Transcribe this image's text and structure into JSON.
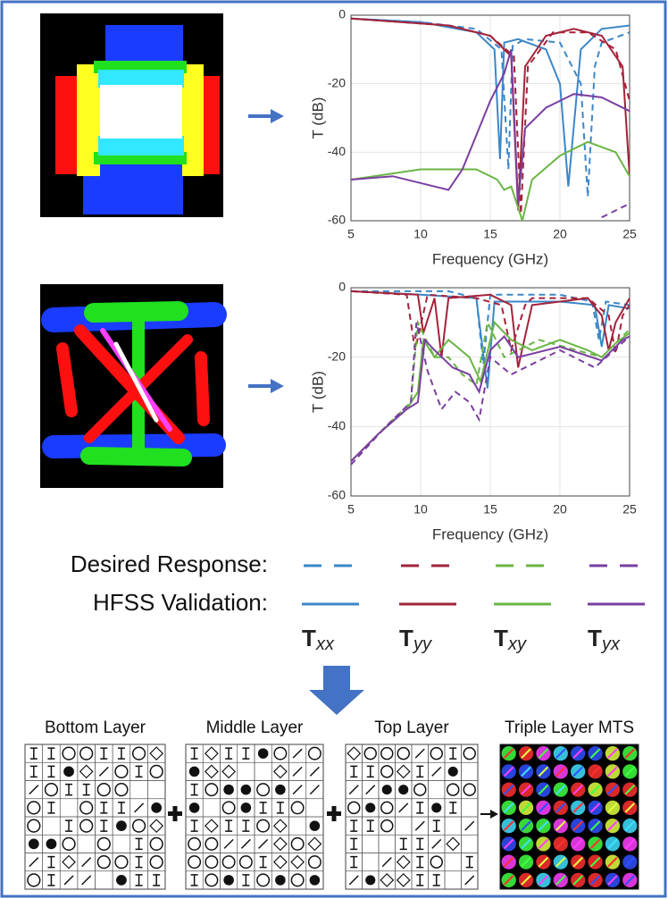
{
  "chart_data": [
    {
      "type": "line",
      "xlabel": "Frequency (GHz)",
      "ylabel": "T (dB)",
      "xlim": [
        5,
        25
      ],
      "ylim": [
        -60,
        0
      ],
      "xticks": [
        5,
        10,
        15,
        20,
        25
      ],
      "yticks": [
        -60,
        -40,
        -20,
        0
      ],
      "grid": true,
      "series": [
        {
          "color": "#3b87c8",
          "dash": true,
          "x": [
            5,
            10,
            14,
            15.8,
            16.3,
            16.6,
            17.5,
            20,
            21.5,
            22,
            22.5,
            23,
            25
          ],
          "values": [
            -1,
            -2,
            -4,
            -10,
            -45,
            -9,
            -7,
            -8,
            -20,
            -53,
            -15,
            -8,
            -5
          ]
        },
        {
          "color": "#3b87c8",
          "dash": false,
          "x": [
            5,
            10,
            14,
            15.3,
            15.7,
            16,
            17,
            19,
            20,
            20.6,
            21.5,
            23,
            25
          ],
          "values": [
            -1,
            -2,
            -5,
            -10,
            -42,
            -8,
            -7,
            -10,
            -20,
            -50,
            -10,
            -4,
            -3
          ]
        },
        {
          "color": "#a3233a",
          "dash": true,
          "x": [
            5,
            12,
            15,
            16.7,
            17.2,
            17.7,
            19.5,
            22,
            24,
            25
          ],
          "values": [
            -1,
            -3,
            -6,
            -12,
            -58,
            -15,
            -5,
            -5,
            -10,
            -25
          ]
        },
        {
          "color": "#a3233a",
          "dash": false,
          "x": [
            5,
            12,
            15,
            16.5,
            17,
            17.5,
            19,
            21,
            23,
            24.5,
            25
          ],
          "values": [
            -1,
            -3,
            -6,
            -12,
            -57,
            -15,
            -6,
            -4,
            -6,
            -15,
            -47
          ]
        },
        {
          "color": "#6ab545",
          "dash": false,
          "x": [
            5,
            10,
            14,
            15.5,
            16,
            16.5,
            17.3,
            18,
            20,
            22,
            24,
            25
          ],
          "values": [
            -48,
            -45,
            -45,
            -48,
            -51,
            -50,
            -60,
            -48,
            -41,
            -37,
            -40,
            -47
          ]
        },
        {
          "color": "#7b3fa0",
          "dash": true,
          "x": [
            23,
            24,
            25
          ],
          "values": [
            -59,
            -57,
            -55
          ]
        },
        {
          "color": "#7b3fa0",
          "dash": false,
          "x": [
            5,
            8,
            11,
            12,
            13,
            14,
            15,
            16,
            16.5,
            17,
            17.5,
            19,
            21,
            23,
            25
          ],
          "values": [
            -48,
            -47,
            -50,
            -51,
            -45,
            -35,
            -25,
            -17,
            -10,
            -55,
            -33,
            -27,
            -23,
            -24,
            -28
          ]
        }
      ]
    },
    {
      "type": "line",
      "xlabel": "Frequency (GHz)",
      "ylabel": "T (dB)",
      "xlim": [
        5,
        25
      ],
      "ylim": [
        -60,
        0
      ],
      "xticks": [
        5,
        10,
        15,
        20,
        25
      ],
      "yticks": [
        -60,
        -40,
        -20,
        0
      ],
      "grid": true,
      "series": [
        {
          "color": "#3b87c8",
          "dash": true,
          "x": [
            5,
            12,
            14,
            14.5,
            15,
            20,
            22.3,
            22.8,
            23.3,
            25
          ],
          "values": [
            -1,
            -1,
            -3,
            -22,
            -2,
            -2,
            -4,
            -15,
            -4,
            -5
          ]
        },
        {
          "color": "#3b87c8",
          "dash": false,
          "x": [
            5,
            10,
            14,
            14.8,
            15.3,
            20,
            22.5,
            23,
            23.5,
            25
          ],
          "values": [
            -1,
            -2,
            -3,
            -29,
            -4,
            -4,
            -5,
            -17,
            -5,
            -6
          ]
        },
        {
          "color": "#a3233a",
          "dash": true,
          "x": [
            5,
            9,
            9.6,
            10.5,
            14,
            15.8,
            16.5,
            17.5,
            18,
            22,
            23.5,
            24,
            24.5,
            25
          ],
          "values": [
            -1,
            -2,
            -18,
            -2,
            -3,
            -5,
            -18,
            -5,
            -3,
            -3,
            -8,
            -19,
            -8,
            -5
          ]
        },
        {
          "color": "#a3233a",
          "dash": false,
          "x": [
            5,
            9.8,
            10.2,
            11,
            11.5,
            12,
            15,
            16.5,
            17,
            18,
            22,
            23,
            23.5,
            24,
            25
          ],
          "values": [
            -1,
            -2,
            -13,
            -3,
            -20,
            -3,
            -2,
            -5,
            -23,
            -5,
            -3,
            -8,
            -18,
            -10,
            -3
          ]
        },
        {
          "color": "#6ab545",
          "dash": true,
          "x": [
            5,
            7.5,
            9.3,
            9.8,
            11,
            12,
            13,
            14,
            14.8,
            16,
            18.5,
            23,
            25
          ],
          "values": [
            -50,
            -40,
            -33,
            -10,
            -20,
            -20,
            -25,
            -28,
            -10,
            -20,
            -15,
            -20,
            -12
          ]
        },
        {
          "color": "#6ab545",
          "dash": false,
          "x": [
            5,
            7,
            9,
            9.8,
            10.2,
            11,
            12,
            13.5,
            14.3,
            15,
            15.3,
            16.5,
            18,
            20,
            22,
            23,
            24,
            25
          ],
          "values": [
            -50,
            -42,
            -35,
            -30,
            -15,
            -20,
            -15,
            -20,
            -27,
            -15,
            -10,
            -15,
            -18,
            -15,
            -18,
            -20,
            -16,
            -13
          ]
        },
        {
          "color": "#7b3fa0",
          "dash": true,
          "x": [
            5,
            7.5,
            9.3,
            9.7,
            10.5,
            11.5,
            12.5,
            13.5,
            14.2,
            15,
            16.5,
            20,
            22.5,
            25
          ],
          "values": [
            -51,
            -40,
            -33,
            -10,
            -24,
            -35,
            -30,
            -33,
            -38,
            -20,
            -25,
            -18,
            -23,
            -14
          ]
        },
        {
          "color": "#7b3fa0",
          "dash": false,
          "x": [
            5,
            7,
            9,
            9.8,
            10.3,
            11,
            12.3,
            13.5,
            14.2,
            15,
            16,
            17,
            20,
            23,
            24.5,
            25
          ],
          "values": [
            -50,
            -42,
            -35,
            -33,
            -15,
            -18,
            -23,
            -25,
            -30,
            -18,
            -14,
            -20,
            -17,
            -21,
            -15,
            -14
          ]
        }
      ]
    }
  ],
  "legend": {
    "desired": "Desired Response:",
    "hfss": "HFSS Validation:",
    "colors": [
      "#3b87c8",
      "#a3233a",
      "#6ab545",
      "#7b3fa0"
    ],
    "labels": [
      {
        "symbol": "T",
        "subscript": "xx"
      },
      {
        "symbol": "T",
        "subscript": "yy"
      },
      {
        "symbol": "T",
        "subscript": "xy"
      },
      {
        "symbol": "T",
        "subscript": "yx"
      }
    ]
  },
  "layers": [
    "Bottom Layer",
    "Middle Layer",
    "Top Layer",
    "Triple Layer MTS"
  ]
}
